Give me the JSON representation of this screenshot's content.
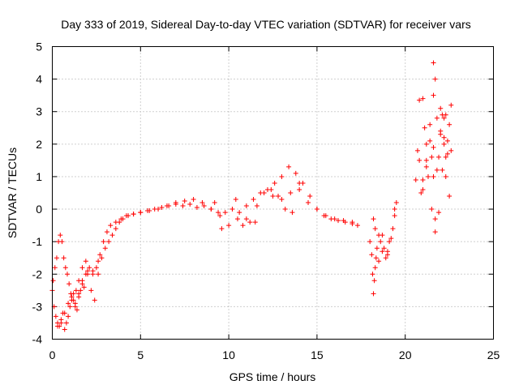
{
  "chart_data": {
    "type": "scatter",
    "title": "Day 333 of 2019, Sidereal Day-to-day VTEC variation (SDTVAR) for receiver vars",
    "xlabel": "GPS time / hours",
    "ylabel": "SDTVAR / TECUs",
    "xlim": [
      0,
      25
    ],
    "ylim": [
      -4,
      5
    ],
    "xticks": [
      "0",
      "5",
      "10",
      "15",
      "20",
      "25"
    ],
    "yticks": [
      "-4",
      "-3",
      "-2",
      "-1",
      "0",
      "1",
      "2",
      "3",
      "4",
      "5"
    ],
    "grid": true,
    "marker": "+",
    "colors": {
      "series": "#ff0000",
      "axes": "#000000",
      "grid": "#a0a0a0"
    },
    "series": [
      {
        "name": "vars",
        "x": [
          0.0,
          0.1,
          0.2,
          0.3,
          0.4,
          0.5,
          0.6,
          0.7,
          0.8,
          0.9,
          1.0,
          1.1,
          1.2,
          1.3,
          1.4,
          1.5,
          1.6,
          1.7,
          1.8,
          1.9,
          2.0,
          2.2,
          2.4,
          2.6,
          2.8,
          3.0,
          3.2,
          3.4,
          3.6,
          3.8,
          4.0,
          4.3,
          4.6,
          5.0,
          5.4,
          5.8,
          6.2,
          6.6,
          7.0,
          7.4,
          7.8,
          8.2,
          8.6,
          9.0,
          9.4,
          9.8,
          10.2,
          10.6,
          11.0,
          11.4,
          11.8,
          12.2,
          12.6,
          13.0,
          13.4,
          13.8,
          14.2,
          14.6,
          15.0,
          15.4,
          15.8,
          16.2,
          16.6,
          17.0,
          17.3,
          0.05,
          0.15,
          0.25,
          0.35,
          0.45,
          0.55,
          0.65,
          0.75,
          0.85,
          0.95,
          1.05,
          1.2,
          1.35,
          1.5,
          1.7,
          1.9,
          2.1,
          2.3,
          2.5,
          2.7,
          2.9,
          3.1,
          3.3,
          3.6,
          3.9,
          4.2,
          4.6,
          5.0,
          5.5,
          6.0,
          6.5,
          7.0,
          7.5,
          8.0,
          8.5,
          9.0,
          9.5,
          10.0,
          10.5,
          11.0,
          11.5,
          12.0,
          12.5,
          13.0,
          13.5,
          14.0,
          14.5,
          15.0,
          15.5,
          16.0,
          16.5,
          17.0,
          0.3,
          0.5,
          0.7,
          0.9,
          1.1,
          1.3,
          1.5,
          1.7,
          2.0,
          2.3,
          2.6,
          9.2,
          9.6,
          10.4,
          10.8,
          11.2,
          11.6,
          12.4,
          12.8,
          13.2,
          13.6,
          14.0,
          18.0,
          18.1,
          18.15,
          18.2,
          18.25,
          18.3,
          18.35,
          18.4,
          18.5,
          18.6,
          18.7,
          18.8,
          18.9,
          19.0,
          19.1,
          19.2,
          19.3,
          19.4,
          19.5,
          18.2,
          18.3,
          18.5,
          18.7,
          19.0,
          19.4,
          20.6,
          20.7,
          20.8,
          20.9,
          21.0,
          21.1,
          21.2,
          21.3,
          21.4,
          21.5,
          21.6,
          21.7,
          21.8,
          21.9,
          22.0,
          22.1,
          22.2,
          22.3,
          22.4,
          22.5,
          22.6,
          20.8,
          21.0,
          21.2,
          21.4,
          21.6,
          21.8,
          22.0,
          22.2,
          22.4,
          21.6,
          21.7,
          22.0,
          22.3,
          21.5,
          21.7,
          21.9,
          22.1,
          22.3,
          22.5,
          21.0,
          21.2,
          21.6,
          22.2,
          22.6
        ],
        "y": [
          -2.5,
          -3.0,
          -3.3,
          -3.5,
          -3.6,
          -3.4,
          -3.2,
          -3.7,
          -3.5,
          -3.3,
          -3.0,
          -2.8,
          -2.6,
          -2.9,
          -3.1,
          -2.7,
          -2.5,
          -2.2,
          -2.4,
          -2.0,
          -1.9,
          -2.5,
          -2.8,
          -2.0,
          -1.5,
          -1.2,
          -1.0,
          -0.8,
          -0.6,
          -0.4,
          -0.3,
          -0.2,
          -0.15,
          -0.1,
          -0.05,
          0.0,
          0.05,
          0.1,
          0.15,
          0.1,
          0.15,
          0.05,
          0.1,
          0.0,
          -0.1,
          -0.1,
          0.0,
          -0.1,
          0.1,
          0.3,
          0.5,
          0.6,
          0.8,
          1.0,
          1.3,
          1.1,
          0.8,
          0.4,
          0.0,
          -0.2,
          -0.3,
          -0.35,
          -0.4,
          -0.45,
          -0.5,
          -2.2,
          -1.8,
          -1.5,
          -1.0,
          -0.8,
          -1.0,
          -1.5,
          -1.8,
          -2.0,
          -2.3,
          -2.6,
          -2.8,
          -2.5,
          -2.2,
          -1.8,
          -1.6,
          -1.8,
          -2.0,
          -1.8,
          -1.4,
          -1.0,
          -0.7,
          -0.5,
          -0.4,
          -0.3,
          -0.2,
          -0.15,
          -0.1,
          -0.05,
          0.0,
          0.1,
          0.2,
          0.25,
          0.3,
          0.2,
          0.0,
          -0.2,
          -0.5,
          -0.3,
          -0.3,
          -0.4,
          0.5,
          0.4,
          0.3,
          0.5,
          0.6,
          0.2,
          0.0,
          -0.2,
          -0.3,
          -0.35,
          -0.4,
          -3.6,
          -3.5,
          -3.2,
          -2.9,
          -2.7,
          -3.0,
          -2.6,
          -2.3,
          -2.0,
          -1.9,
          -1.6,
          0.2,
          -0.6,
          0.3,
          -0.5,
          -0.4,
          0.1,
          0.6,
          0.4,
          0.0,
          -0.1,
          0.8,
          -1.0,
          -1.4,
          -2.0,
          -2.6,
          -2.2,
          -1.8,
          -1.5,
          -1.2,
          -0.8,
          -1.0,
          -1.3,
          -1.2,
          -1.5,
          -1.3,
          -1.0,
          -0.9,
          -0.6,
          -0.2,
          0.2,
          -0.3,
          -0.6,
          -1.6,
          -0.8,
          -1.4,
          0.0,
          0.9,
          1.8,
          1.5,
          0.5,
          0.9,
          2.5,
          1.5,
          1.0,
          2.1,
          1.6,
          1.0,
          -0.7,
          1.2,
          1.6,
          2.4,
          2.9,
          2.2,
          1.6,
          2.1,
          2.6,
          1.8,
          3.35,
          3.4,
          2.0,
          2.6,
          3.5,
          2.8,
          2.3,
          2.0,
          1.7,
          4.5,
          4.0,
          3.1,
          2.9,
          0.0,
          -0.3,
          -0.1,
          1.2,
          1.0,
          0.4,
          0.6,
          1.3,
          1.9,
          2.8,
          3.2
        ]
      }
    ]
  }
}
